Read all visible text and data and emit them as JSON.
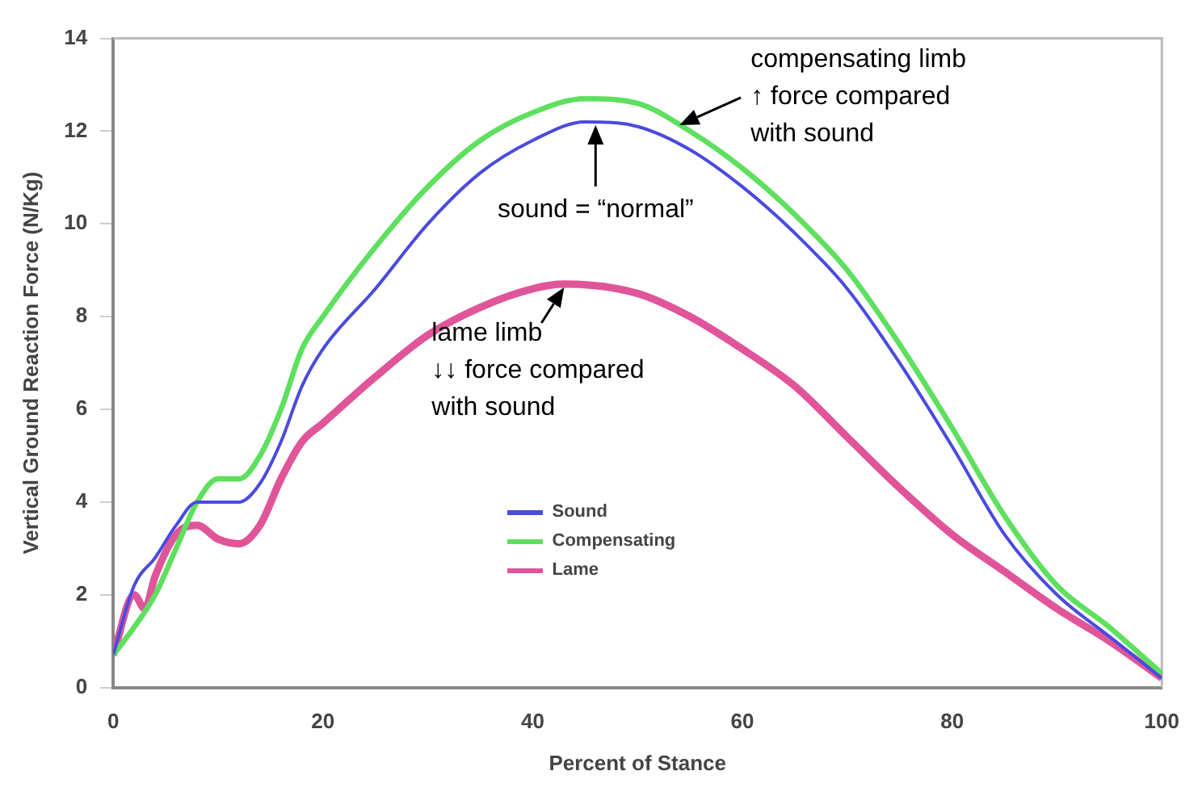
{
  "chart_data": {
    "type": "line",
    "xlabel": "Percent of Stance",
    "ylabel": "Vertical Ground Reaction Force (N/Kg)",
    "xlim": [
      0,
      100
    ],
    "xticks": [
      0,
      20,
      40,
      60,
      80,
      100
    ],
    "ylim": [
      0,
      14
    ],
    "yticks": [
      0,
      2,
      4,
      6,
      8,
      10,
      12,
      14
    ],
    "grid": false,
    "legend": "bottom",
    "marker": "none",
    "line_style": "solid",
    "series": [
      {
        "name": "Sound",
        "color": "#4a4ae0",
        "x": [
          0,
          2,
          4,
          6,
          8,
          10,
          12,
          14,
          16,
          18,
          20,
          25,
          30,
          35,
          40,
          45,
          50,
          55,
          60,
          65,
          70,
          75,
          80,
          85,
          90,
          95,
          100
        ],
        "values": [
          0.7,
          2.2,
          2.8,
          3.5,
          4.0,
          4.0,
          4.0,
          4.4,
          5.3,
          6.5,
          7.3,
          8.6,
          10.0,
          11.1,
          11.8,
          12.2,
          12.1,
          11.6,
          10.8,
          9.8,
          8.6,
          7.0,
          5.2,
          3.3,
          2.0,
          1.1,
          0.2
        ]
      },
      {
        "name": "Compensating",
        "color": "#5ee05e",
        "x": [
          0,
          2,
          4,
          6,
          8,
          10,
          12,
          14,
          16,
          18,
          20,
          25,
          30,
          35,
          40,
          45,
          50,
          55,
          60,
          65,
          70,
          75,
          80,
          85,
          90,
          95,
          100
        ],
        "values": [
          0.7,
          1.3,
          2.0,
          3.0,
          4.0,
          4.5,
          4.5,
          5.0,
          6.0,
          7.3,
          8.0,
          9.5,
          10.8,
          11.8,
          12.4,
          12.7,
          12.6,
          12.0,
          11.2,
          10.2,
          9.0,
          7.4,
          5.6,
          3.7,
          2.2,
          1.3,
          0.3
        ]
      },
      {
        "name": "Lame",
        "color": "#e0559a",
        "x": [
          0,
          2,
          3,
          4,
          6,
          8,
          10,
          12,
          14,
          16,
          18,
          20,
          25,
          30,
          35,
          40,
          43,
          50,
          55,
          60,
          65,
          70,
          75,
          80,
          85,
          90,
          95,
          100
        ],
        "values": [
          0.7,
          2.0,
          1.7,
          2.4,
          3.3,
          3.5,
          3.2,
          3.1,
          3.5,
          4.5,
          5.3,
          5.7,
          6.7,
          7.6,
          8.2,
          8.6,
          8.7,
          8.5,
          8.0,
          7.3,
          6.5,
          5.4,
          4.3,
          3.3,
          2.5,
          1.7,
          1.0,
          0.2
        ]
      }
    ],
    "annotations": [
      {
        "text": "sound = “normal”",
        "x": 46,
        "y": 12.2
      },
      {
        "text": "lame limb\n↓↓ force compared\nwith sound",
        "x": 43,
        "y": 8.7
      },
      {
        "text": "compensating limb\n↑ force compared\nwith sound",
        "x": 54,
        "y": 12.2
      }
    ]
  }
}
